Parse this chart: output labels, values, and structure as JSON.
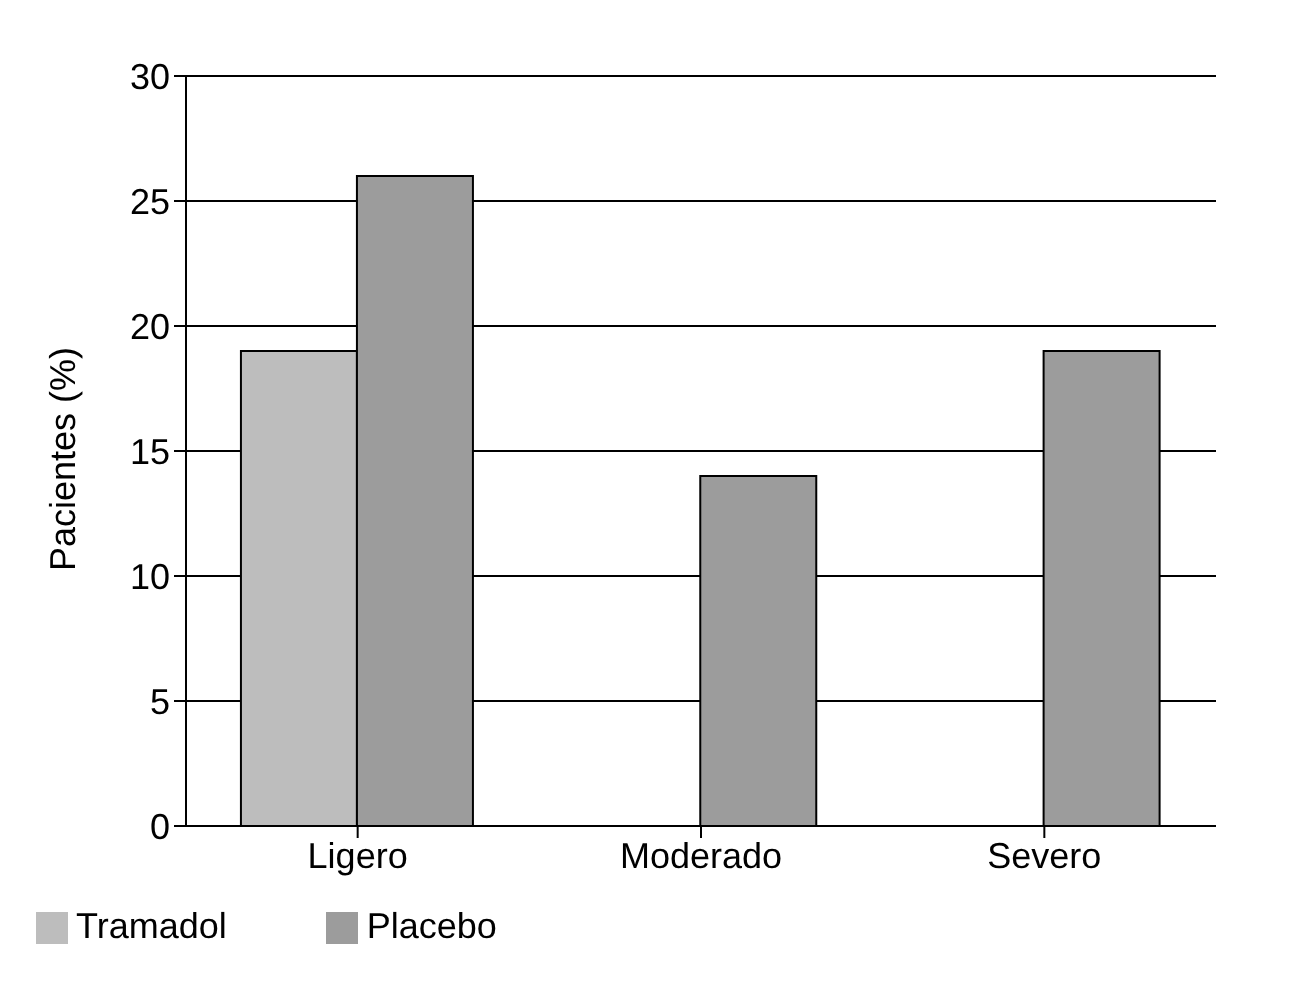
{
  "chart_data": {
    "type": "bar",
    "ylabel": "Pacientes (%)",
    "categories": [
      "Ligero",
      "Moderado",
      "Severo"
    ],
    "series": [
      {
        "name": "Tramadol",
        "color": "#bdbdbd",
        "values": [
          19,
          0,
          0
        ]
      },
      {
        "name": "Placebo",
        "color": "#9c9c9c",
        "values": [
          26,
          14,
          19
        ]
      }
    ],
    "ylim": [
      0,
      30
    ],
    "yticks": [
      0,
      5,
      10,
      15,
      20,
      25,
      30
    ],
    "grid": "y",
    "legend": "bottom left"
  }
}
